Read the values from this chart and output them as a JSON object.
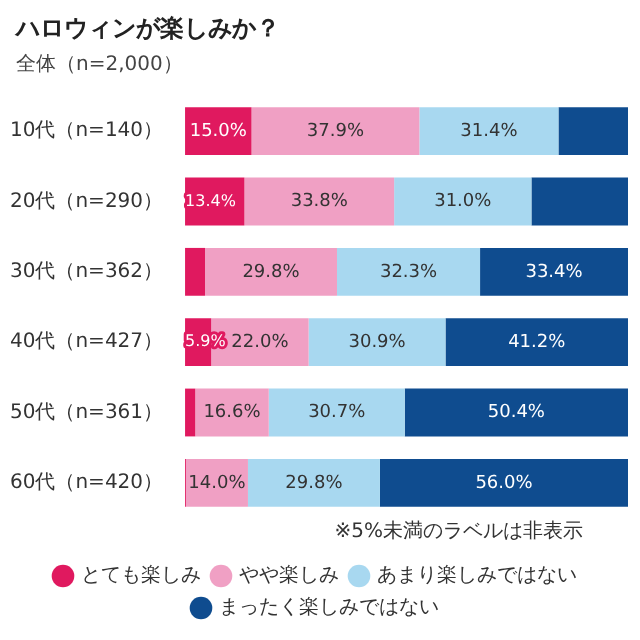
{
  "chart_data": {
    "type": "bar",
    "orientation": "horizontal",
    "stacked": true,
    "title": "ハロウィンが楽しみか？",
    "subtitle": "全体（n=2,000）",
    "categories": [
      "10代（n=140）",
      "20代（n=290）",
      "30代（n=362）",
      "40代（n=427）",
      "50代（n=361）",
      "60代（n=420）"
    ],
    "series": [
      {
        "name": "とても楽しみ",
        "color": "#e0195f",
        "values": [
          15.0,
          13.4,
          4.5,
          5.9,
          2.3,
          0.2
        ],
        "value_labels": [
          "15.0%",
          "13.4%",
          null,
          "5.9%",
          null,
          null
        ]
      },
      {
        "name": "やや楽しみ",
        "color": "#f0a0c4",
        "values": [
          37.9,
          33.8,
          29.8,
          22.0,
          16.6,
          14.0
        ],
        "value_labels": [
          "37.9%",
          "33.8%",
          "29.8%",
          "22.0%",
          "16.6%",
          "14.0%"
        ]
      },
      {
        "name": "あまり楽しみではない",
        "color": "#a8d8f0",
        "values": [
          31.4,
          31.0,
          32.3,
          30.9,
          30.7,
          29.8
        ],
        "value_labels": [
          "31.4%",
          "31.0%",
          "32.3%",
          "30.9%",
          "30.7%",
          "29.8%"
        ]
      },
      {
        "name": "まったく楽しみではない",
        "color": "#0f4c8f",
        "values": [
          15.7,
          21.8,
          33.4,
          41.2,
          50.4,
          56.0
        ],
        "value_labels": [
          null,
          null,
          "33.4%",
          "41.2%",
          "50.4%",
          "56.0%"
        ]
      }
    ],
    "xlim": [
      0,
      100
    ],
    "tick_labels": "y",
    "legend": "bottom",
    "annotations": [
      "※5%未満のラベルは非表示"
    ]
  }
}
